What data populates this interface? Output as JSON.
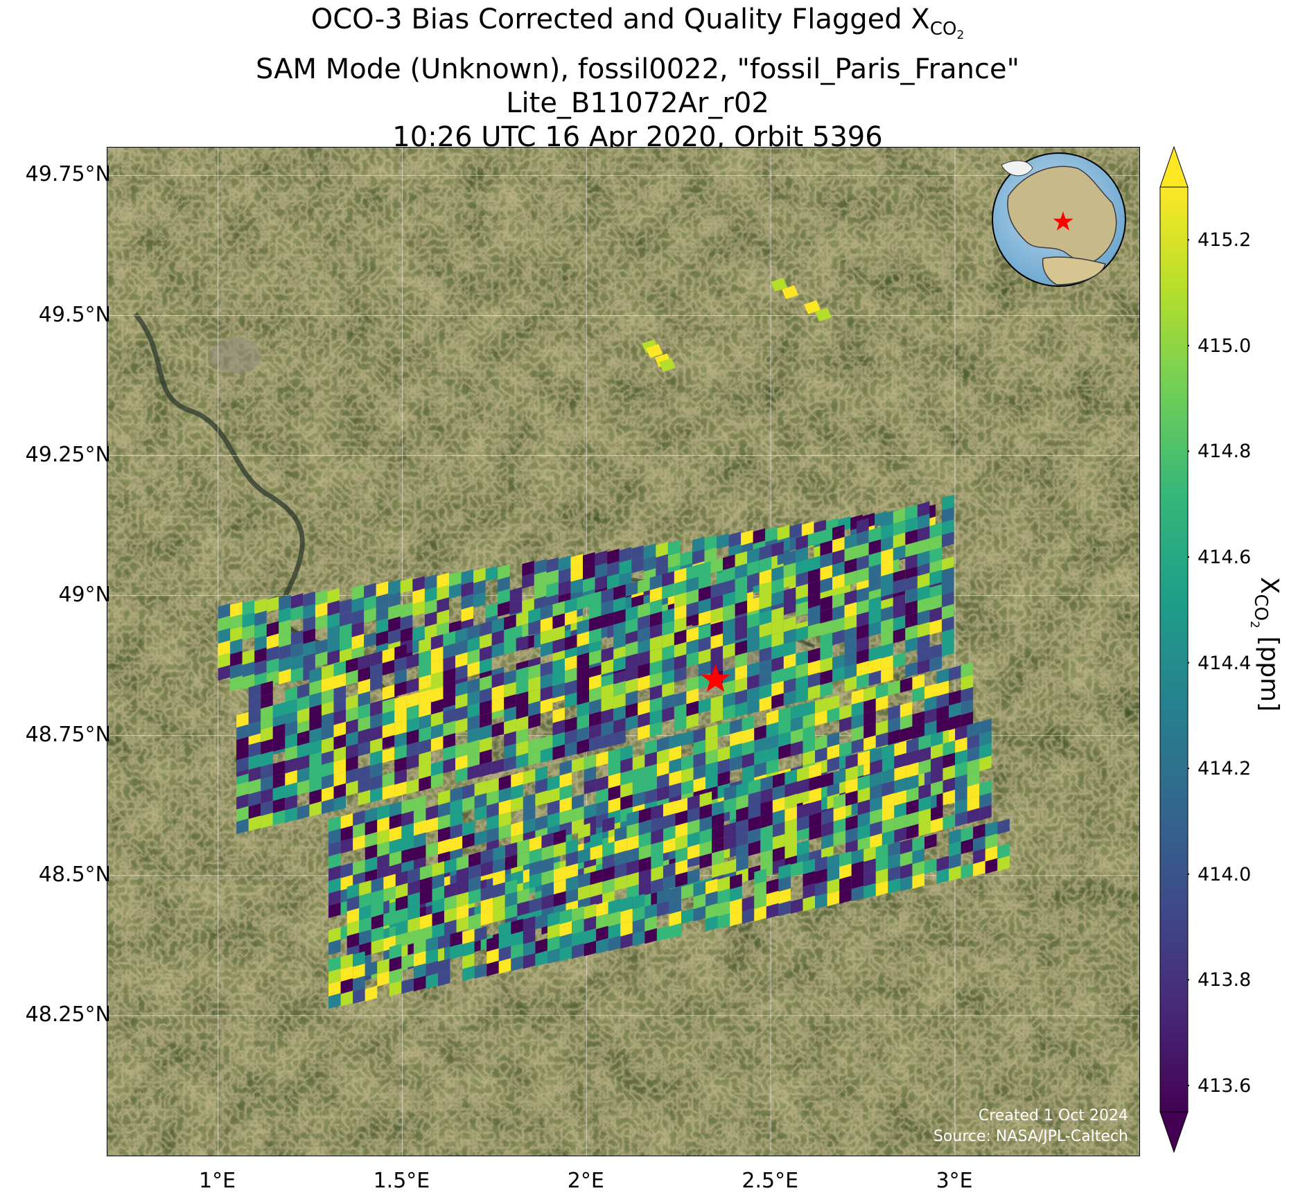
{
  "title": {
    "line1_prefix": "OCO-3 Bias Corrected and Quality Flagged X",
    "line1_sub": "CO",
    "line1_sub2": "2",
    "line2": "SAM Mode (Unknown), fossil0022, \"fossil_Paris_France\"",
    "line3": "Lite_B11072Ar_r02",
    "line4": "10:26 UTC 16 Apr 2020, Orbit 5396"
  },
  "map": {
    "basemap": "satellite imagery (farmland, forest, river Seine)",
    "lon_range": [
      0.7,
      3.5
    ],
    "lat_range": [
      48.0,
      49.8
    ],
    "lon_ticks": [
      "1°E",
      "1.5°E",
      "2°E",
      "2.5°E",
      "3°E"
    ],
    "lat_ticks": [
      "49.75°N",
      "49.5°N",
      "49.25°N",
      "49°N",
      "48.75°N",
      "48.5°N",
      "48.25°N"
    ],
    "gridlines": true,
    "target_marker": {
      "lon": 2.35,
      "lat": 48.85,
      "symbol": "star",
      "color": "#ff0000"
    },
    "inset": "globe-locator (top-right), red star over France",
    "credit_line1": "Created 1 Oct 2024",
    "credit_line2": "Source: NASA/JPL-Caltech"
  },
  "chart_data": {
    "type": "heatmap",
    "description_of_content": "OCO-3 XCO2 soundings in swaths across the Paris region",
    "value_range": [
      413.55,
      415.3
    ],
    "colormap": "viridis",
    "swaths": [
      {
        "lon_min": 1.0,
        "lon_max": 2.95,
        "lat_start": 48.98,
        "lat_end": 48.82,
        "tilt": 0.18
      },
      {
        "lon_min": 1.05,
        "lon_max": 3.0,
        "lat_start": 48.83,
        "lat_end": 48.65,
        "tilt": 0.35
      },
      {
        "lon_min": 1.05,
        "lon_max": 3.0,
        "lat_start": 48.75,
        "lat_end": 48.57,
        "tilt": 0.3
      },
      {
        "lon_min": 1.3,
        "lon_max": 3.05,
        "lat_start": 48.6,
        "lat_end": 48.35,
        "tilt": 0.28
      },
      {
        "lon_min": 1.35,
        "lon_max": 3.1,
        "lat_start": 48.48,
        "lat_end": 48.3,
        "tilt": 0.3
      },
      {
        "lon_min": 1.3,
        "lon_max": 3.15,
        "lat_start": 48.35,
        "lat_end": 48.26,
        "tilt": 0.25
      }
    ],
    "isolated_strips": [
      {
        "lon": [
          2.15,
          2.22
        ],
        "lat": [
          49.45,
          49.4
        ]
      },
      {
        "lon": [
          2.5,
          2.68
        ],
        "lat": [
          49.56,
          49.48
        ]
      }
    ]
  },
  "colorbar": {
    "ticks": [
      "415.2",
      "415.0",
      "414.8",
      "414.6",
      "414.4",
      "414.2",
      "414.0",
      "413.8",
      "413.6"
    ],
    "tick_values": [
      415.2,
      415.0,
      414.8,
      414.6,
      414.4,
      414.2,
      414.0,
      413.8,
      413.6
    ],
    "label_prefix": "X",
    "label_sub": "CO",
    "label_sub2": "2",
    "label_suffix": " [ppm]",
    "extend": "both",
    "colors": [
      "#440154",
      "#482878",
      "#3e4a89",
      "#31688e",
      "#26828e",
      "#1f9e89",
      "#35b779",
      "#6ece58",
      "#b5de2b",
      "#fde725"
    ]
  }
}
